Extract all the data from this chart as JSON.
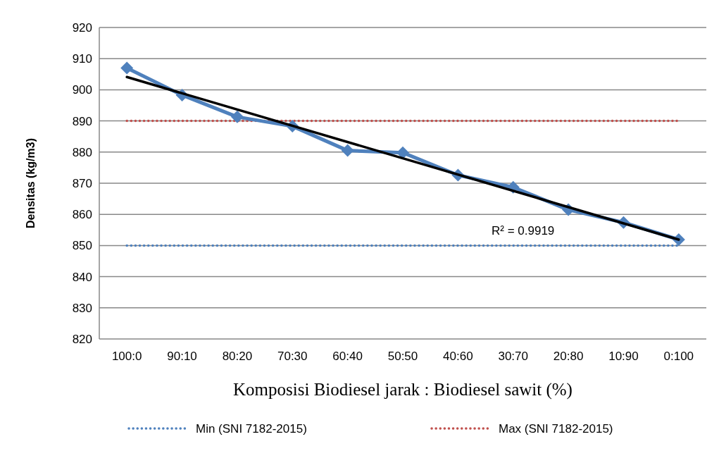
{
  "chart_data": {
    "type": "line",
    "categories": [
      "100:0",
      "90:10",
      "80:20",
      "70:30",
      "60:40",
      "50:50",
      "40:60",
      "30:70",
      "20:80",
      "10:90",
      "0:100"
    ],
    "xlabel": "Komposisi Biodiesel jarak : Biodiesel sawit (%)",
    "ylabel": "Densitas (kg/m3)",
    "ylim": [
      820,
      920
    ],
    "yticks": [
      820,
      830,
      840,
      850,
      860,
      870,
      880,
      890,
      900,
      910,
      920
    ],
    "grid": "y",
    "legend": "bottom",
    "series": [
      {
        "name": "Min (SNI 7182-2015)",
        "color": "#4f81bd",
        "line_style": "dotted",
        "marker": "none",
        "values": [
          850,
          850,
          850,
          850,
          850,
          850,
          850,
          850,
          850,
          850,
          850
        ]
      },
      {
        "name": "Max (SNI 7182-2015)",
        "color": "#c0504d",
        "line_style": "dotted",
        "marker": "none",
        "values": [
          890,
          890,
          890,
          890,
          890,
          890,
          890,
          890,
          890,
          890,
          890
        ]
      },
      {
        "color": "#4f81bd",
        "line_style": "solid",
        "marker": "diamond",
        "values": [
          907.0,
          898.3,
          891.3,
          888.3,
          880.5,
          879.8,
          872.6,
          868.7,
          861.5,
          857.4,
          851.9
        ]
      },
      {
        "color": "#000000",
        "line_style": "solid",
        "marker": "none",
        "x": [
          "100:0",
          "0:100"
        ],
        "values": [
          904.1,
          851.9
        ]
      }
    ],
    "annotations": [
      "R² = 0.9919"
    ]
  }
}
